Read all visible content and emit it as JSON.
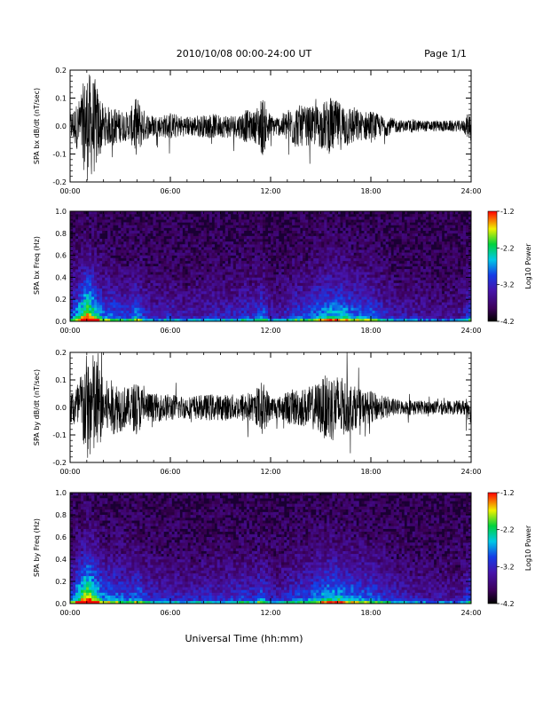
{
  "header": {
    "title": "2010/10/08  00:00-24:00 UT",
    "page": "Page 1/1"
  },
  "footer": {
    "xlabel": "Universal Time (hh:mm)"
  },
  "chart_data": [
    {
      "id": "bx_wave",
      "type": "line",
      "ylabel": "SPA bx dB/dt (nT/sec)",
      "xlim": [
        0,
        24
      ],
      "ylim": [
        -0.2,
        0.2
      ],
      "x_ticks": [
        "00:00",
        "06:00",
        "12:00",
        "18:00",
        "24:00"
      ],
      "y_ticks": [
        "-0.2",
        "-0.1",
        "0.0",
        "0.1",
        "0.2"
      ],
      "x_hours": [
        0,
        0.5,
        1,
        1.5,
        2,
        2.5,
        3,
        3.5,
        4,
        4.5,
        5,
        5.5,
        6,
        6.5,
        7,
        7.5,
        8,
        8.5,
        9,
        9.5,
        10,
        10.5,
        11,
        11.5,
        12,
        12.5,
        13,
        13.5,
        14,
        14.5,
        15,
        15.5,
        16,
        16.5,
        17,
        17.5,
        18,
        18.5,
        19,
        19.5,
        20,
        20.5,
        21,
        21.5,
        22,
        22.5,
        23,
        23.5,
        24
      ],
      "amplitude": [
        0.05,
        0.09,
        0.2,
        0.17,
        0.07,
        0.07,
        0.06,
        0.05,
        0.11,
        0.05,
        0.04,
        0.04,
        0.05,
        0.04,
        0.035,
        0.04,
        0.04,
        0.045,
        0.04,
        0.045,
        0.04,
        0.06,
        0.05,
        0.11,
        0.04,
        0.035,
        0.06,
        0.08,
        0.07,
        0.07,
        0.08,
        0.1,
        0.09,
        0.08,
        0.07,
        0.05,
        0.06,
        0.04,
        0.035,
        0.025,
        0.02,
        0.025,
        0.02,
        0.02,
        0.02,
        0.02,
        0.02,
        0.02,
        0.06
      ]
    },
    {
      "id": "bx_spec",
      "type": "heatmap",
      "ylabel": "SPA bx Freq (Hz)",
      "xlim": [
        0,
        24
      ],
      "ylim": [
        0,
        1.0
      ],
      "x_ticks": [
        "00:00",
        "06:00",
        "12:00",
        "18:00",
        "24:00"
      ],
      "y_ticks": [
        "0.0",
        "0.2",
        "0.4",
        "0.6",
        "0.8",
        "1.0"
      ],
      "colorbar": {
        "label": "Log10 Power",
        "min": -4.2,
        "max": -1.2,
        "ticks": [
          "-1.2",
          "-2.2",
          "-3.2",
          "-4.2"
        ]
      },
      "hour_activity": [
        0.35,
        0.6,
        1.0,
        0.7,
        0.45,
        0.45,
        0.4,
        0.35,
        0.5,
        0.3,
        0.25,
        0.25,
        0.3,
        0.25,
        0.22,
        0.25,
        0.25,
        0.28,
        0.25,
        0.3,
        0.28,
        0.35,
        0.3,
        0.45,
        0.25,
        0.22,
        0.3,
        0.38,
        0.4,
        0.45,
        0.55,
        0.6,
        0.6,
        0.55,
        0.5,
        0.45,
        0.45,
        0.35,
        0.3,
        0.25,
        0.22,
        0.22,
        0.2,
        0.18,
        0.18,
        0.18,
        0.18,
        0.2,
        0.45
      ]
    },
    {
      "id": "by_wave",
      "type": "line",
      "ylabel": "SPA by dB/dt (nT/sec)",
      "xlim": [
        0,
        24
      ],
      "ylim": [
        -0.2,
        0.2
      ],
      "x_ticks": [
        "00:00",
        "06:00",
        "12:00",
        "18:00",
        "24:00"
      ],
      "y_ticks": [
        "-0.2",
        "-0.1",
        "0.0",
        "0.1",
        "0.2"
      ],
      "x_hours": [
        0,
        0.5,
        1,
        1.5,
        2,
        2.5,
        3,
        3.5,
        4,
        4.5,
        5,
        5.5,
        6,
        6.5,
        7,
        7.5,
        8,
        8.5,
        9,
        9.5,
        10,
        10.5,
        11,
        11.5,
        12,
        12.5,
        13,
        13.5,
        14,
        14.5,
        15,
        15.5,
        16,
        16.5,
        17,
        17.5,
        18,
        18.5,
        19,
        19.5,
        20,
        20.5,
        21,
        21.5,
        22,
        22.5,
        23,
        23.5,
        24
      ],
      "amplitude": [
        0.06,
        0.1,
        0.2,
        0.2,
        0.1,
        0.1,
        0.09,
        0.07,
        0.1,
        0.06,
        0.05,
        0.05,
        0.05,
        0.045,
        0.04,
        0.045,
        0.045,
        0.05,
        0.045,
        0.05,
        0.045,
        0.06,
        0.05,
        0.1,
        0.045,
        0.04,
        0.06,
        0.07,
        0.07,
        0.08,
        0.1,
        0.13,
        0.12,
        0.1,
        0.08,
        0.06,
        0.06,
        0.045,
        0.04,
        0.03,
        0.025,
        0.03,
        0.025,
        0.025,
        0.025,
        0.025,
        0.025,
        0.025,
        0.06
      ]
    },
    {
      "id": "by_spec",
      "type": "heatmap",
      "ylabel": "SPA by Freq (Hz)",
      "xlim": [
        0,
        24
      ],
      "ylim": [
        0,
        1.0
      ],
      "x_ticks": [
        "00:00",
        "06:00",
        "12:00",
        "18:00",
        "24:00"
      ],
      "y_ticks": [
        "0.0",
        "0.2",
        "0.4",
        "0.6",
        "0.8",
        "1.0"
      ],
      "colorbar": {
        "label": "Log10 Power",
        "min": -4.2,
        "max": -1.2,
        "ticks": [
          "-1.2",
          "-2.2",
          "-3.2",
          "-4.2"
        ]
      },
      "hour_activity": [
        0.4,
        0.65,
        1.0,
        0.75,
        0.5,
        0.5,
        0.45,
        0.4,
        0.5,
        0.35,
        0.3,
        0.3,
        0.3,
        0.28,
        0.25,
        0.28,
        0.28,
        0.3,
        0.28,
        0.32,
        0.3,
        0.38,
        0.32,
        0.45,
        0.28,
        0.25,
        0.32,
        0.38,
        0.4,
        0.45,
        0.55,
        0.62,
        0.6,
        0.55,
        0.5,
        0.45,
        0.45,
        0.38,
        0.32,
        0.28,
        0.25,
        0.25,
        0.22,
        0.2,
        0.2,
        0.2,
        0.2,
        0.22,
        0.45
      ]
    }
  ]
}
